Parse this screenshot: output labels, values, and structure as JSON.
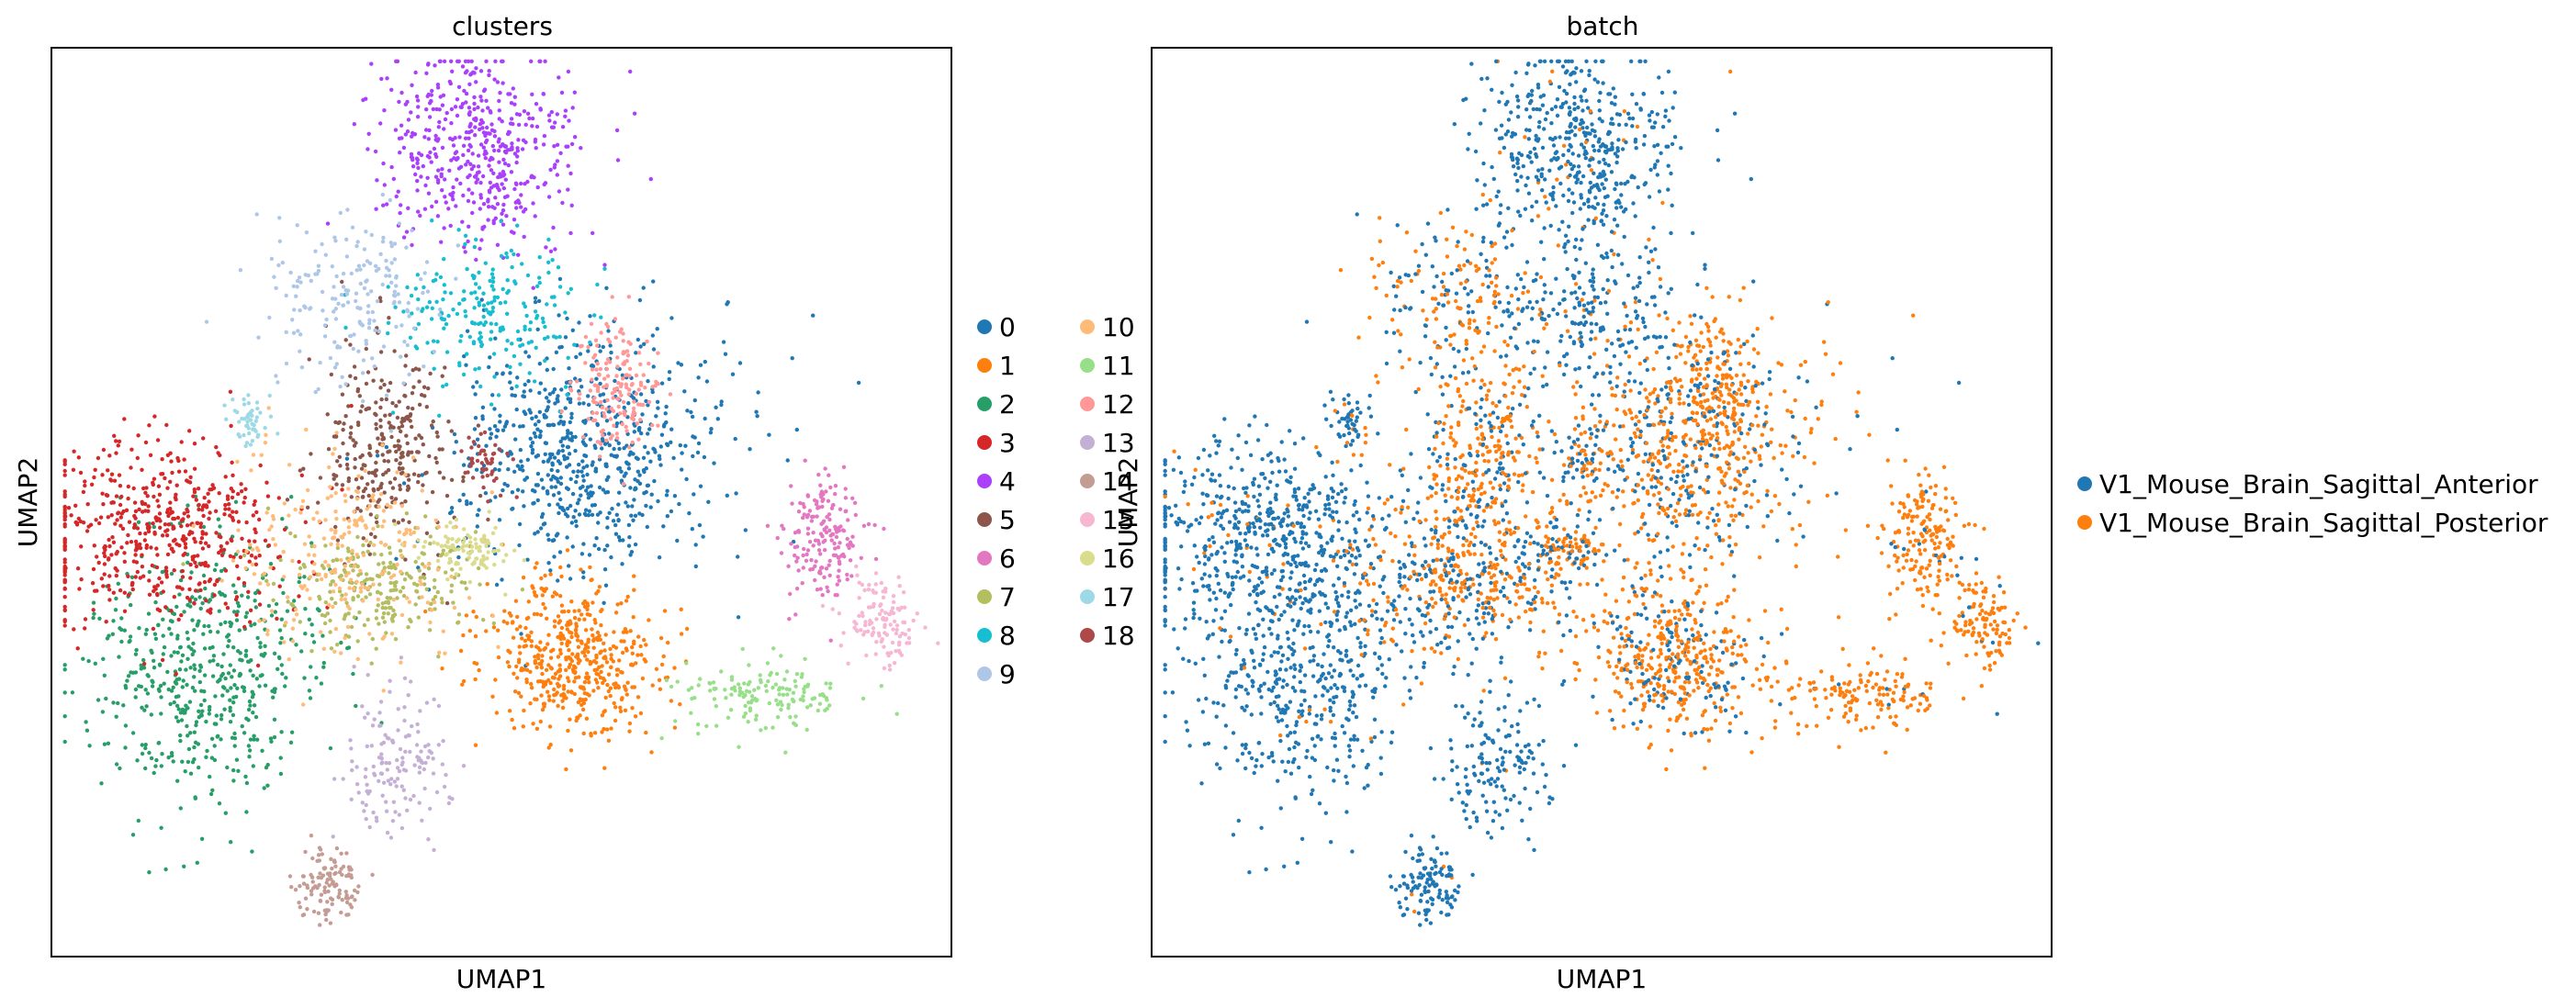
{
  "chart_data": [
    {
      "type": "scatter",
      "title": "clusters",
      "xlabel": "UMAP1",
      "ylabel": "UMAP2",
      "legend": {
        "placement": "right",
        "columns": 2,
        "entries": [
          {
            "label": "0",
            "color": "#1f77b4"
          },
          {
            "label": "1",
            "color": "#ff7f0e"
          },
          {
            "label": "2",
            "color": "#279e68"
          },
          {
            "label": "3",
            "color": "#d62728"
          },
          {
            "label": "4",
            "color": "#aa40fc"
          },
          {
            "label": "5",
            "color": "#8c564b"
          },
          {
            "label": "6",
            "color": "#e377c2"
          },
          {
            "label": "7",
            "color": "#b5bd61"
          },
          {
            "label": "8",
            "color": "#17becf"
          },
          {
            "label": "9",
            "color": "#aec7e8"
          },
          {
            "label": "10",
            "color": "#ffbb78"
          },
          {
            "label": "11",
            "color": "#98df8a"
          },
          {
            "label": "12",
            "color": "#ff9896"
          },
          {
            "label": "13",
            "color": "#c5b0d5"
          },
          {
            "label": "14",
            "color": "#c49c94"
          },
          {
            "label": "15",
            "color": "#f7b6d2"
          },
          {
            "label": "16",
            "color": "#dbdb8d"
          },
          {
            "label": "17",
            "color": "#9edae5"
          },
          {
            "label": "18",
            "color": "#ad494a"
          }
        ]
      },
      "grid": false,
      "ticks": false,
      "xlim": [
        0,
        1
      ],
      "ylim": [
        0,
        1
      ],
      "groups": [
        {
          "label": "0",
          "cx": 0.59,
          "cy": 0.44,
          "sx": 0.075,
          "sy": 0.07,
          "n": 700
        },
        {
          "label": "1",
          "cx": 0.58,
          "cy": 0.67,
          "sx": 0.05,
          "sy": 0.045,
          "n": 500
        },
        {
          "label": "2",
          "cx": 0.17,
          "cy": 0.69,
          "sx": 0.065,
          "sy": 0.08,
          "n": 550
        },
        {
          "label": "3",
          "cx": 0.12,
          "cy": 0.53,
          "sx": 0.075,
          "sy": 0.05,
          "n": 550
        },
        {
          "label": "4",
          "cx": 0.47,
          "cy": 0.11,
          "sx": 0.06,
          "sy": 0.055,
          "n": 500
        },
        {
          "label": "5",
          "cx": 0.37,
          "cy": 0.44,
          "sx": 0.035,
          "sy": 0.06,
          "n": 300
        },
        {
          "label": "6",
          "cx": 0.86,
          "cy": 0.54,
          "sx": 0.022,
          "sy": 0.035,
          "n": 180
        },
        {
          "label": "7",
          "cx": 0.37,
          "cy": 0.59,
          "sx": 0.06,
          "sy": 0.03,
          "n": 250
        },
        {
          "label": "8",
          "cx": 0.48,
          "cy": 0.29,
          "sx": 0.055,
          "sy": 0.04,
          "n": 220
        },
        {
          "label": "9",
          "cx": 0.33,
          "cy": 0.28,
          "sx": 0.05,
          "sy": 0.05,
          "n": 200
        },
        {
          "label": "10",
          "cx": 0.33,
          "cy": 0.56,
          "sx": 0.06,
          "sy": 0.06,
          "n": 250
        },
        {
          "label": "11",
          "cx": 0.79,
          "cy": 0.71,
          "sx": 0.045,
          "sy": 0.02,
          "n": 150
        },
        {
          "label": "12",
          "cx": 0.63,
          "cy": 0.37,
          "sx": 0.025,
          "sy": 0.04,
          "n": 170
        },
        {
          "label": "13",
          "cx": 0.38,
          "cy": 0.79,
          "sx": 0.03,
          "sy": 0.04,
          "n": 150
        },
        {
          "label": "14",
          "cx": 0.31,
          "cy": 0.92,
          "sx": 0.02,
          "sy": 0.02,
          "n": 120
        },
        {
          "label": "15",
          "cx": 0.92,
          "cy": 0.63,
          "sx": 0.02,
          "sy": 0.025,
          "n": 120
        },
        {
          "label": "16",
          "cx": 0.46,
          "cy": 0.55,
          "sx": 0.025,
          "sy": 0.015,
          "n": 100
        },
        {
          "label": "17",
          "cx": 0.22,
          "cy": 0.41,
          "sx": 0.012,
          "sy": 0.012,
          "n": 50
        },
        {
          "label": "18",
          "cx": 0.48,
          "cy": 0.46,
          "sx": 0.012,
          "sy": 0.015,
          "n": 50
        }
      ]
    },
    {
      "type": "scatter",
      "title": "batch",
      "xlabel": "UMAP1",
      "ylabel": "UMAP2",
      "legend": {
        "placement": "right",
        "columns": 1,
        "entries": [
          {
            "label": "V1_Mouse_Brain_Sagittal_Anterior",
            "color": "#1f77b4"
          },
          {
            "label": "V1_Mouse_Brain_Sagittal_Posterior",
            "color": "#ff7f0e"
          }
        ]
      },
      "grid": false,
      "ticks": false,
      "xlim": [
        0,
        1
      ],
      "ylim": [
        0,
        1
      ],
      "note_series": "same embedding as the clusters panel, colored by batch"
    }
  ]
}
